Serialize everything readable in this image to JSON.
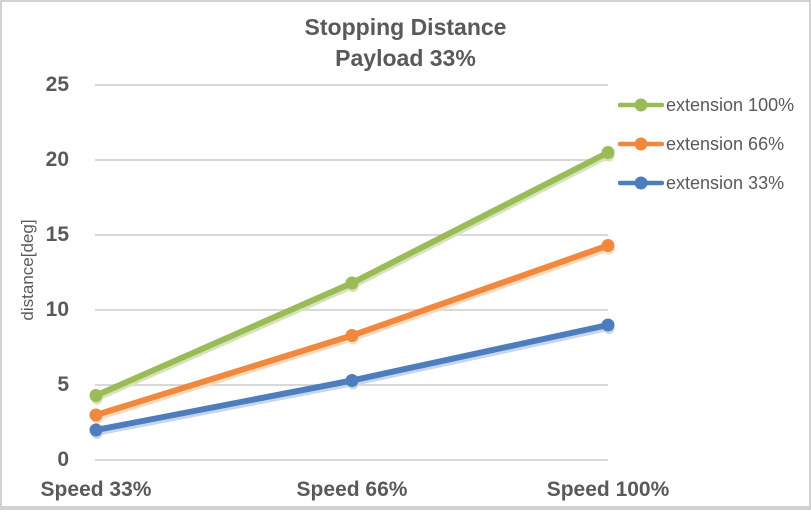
{
  "window": {
    "background": "#FFFFFF",
    "border_color": "#D2D2D2"
  },
  "chart_data": {
    "type": "line",
    "title": "Stopping Distance Payload 33%",
    "title_lines": [
      "Stopping Distance",
      "Payload 33%"
    ],
    "xlabel": "",
    "ylabel": "distance[deg]",
    "categories": [
      "Speed 33%",
      "Speed 66%",
      "Speed 100%"
    ],
    "series": [
      {
        "name": "extension 100%",
        "values": [
          4.3,
          11.8,
          20.5
        ],
        "color": "#9BBB59",
        "halo_color": "#D5E3B8"
      },
      {
        "name": "extension 66%",
        "values": [
          3.0,
          8.3,
          14.3
        ],
        "color": "#F0883E",
        "halo_color": "#FBD9BB"
      },
      {
        "name": "extension 33%",
        "values": [
          2.0,
          5.3,
          9.0
        ],
        "color": "#4E7DBD",
        "halo_color": "#C6D6EB"
      }
    ],
    "ylim": [
      0,
      25
    ],
    "yticks": [
      0,
      5,
      10,
      15,
      20,
      25
    ],
    "grid": true,
    "legend_position": "right",
    "text_color": "#595959",
    "grid_color": "#D9D9D9"
  }
}
